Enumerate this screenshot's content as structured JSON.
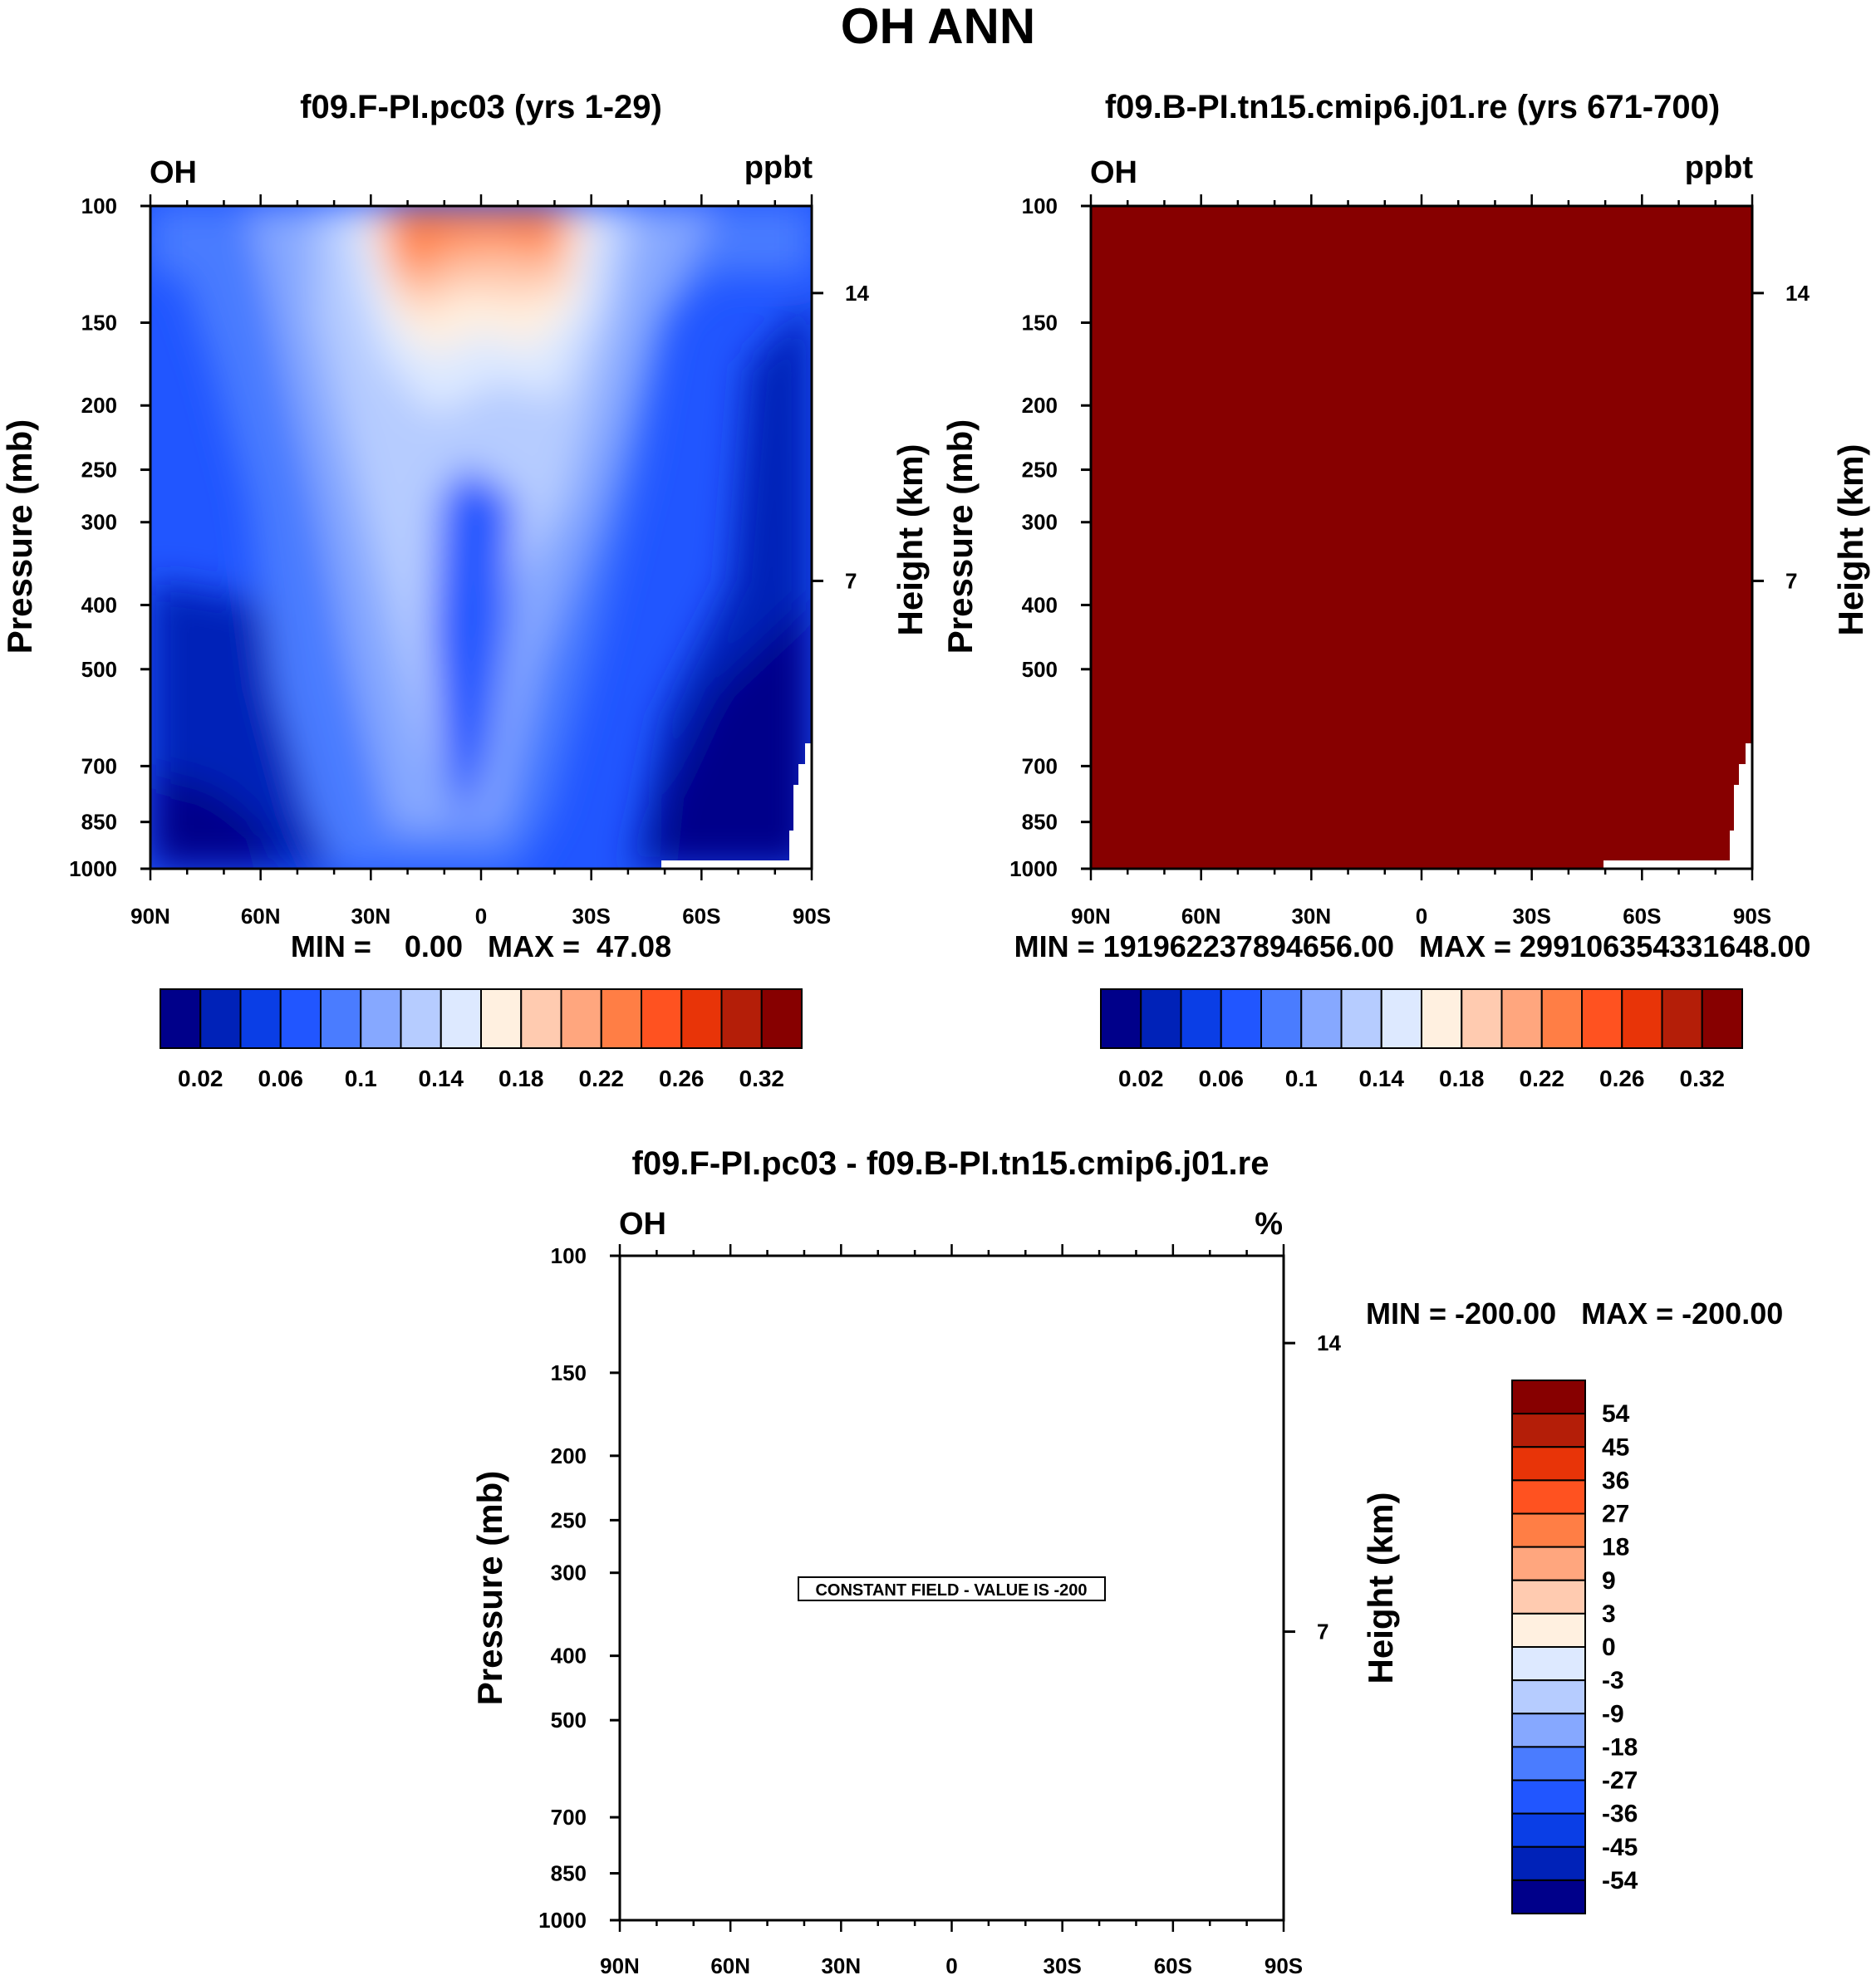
{
  "figure_title": "OH ANN",
  "chart_data": [
    {
      "type": "heatmap",
      "title": "f09.F-PI.pc03 (yrs 1-29)",
      "left_label": "OH",
      "right_label": "ppbt",
      "ylabel": "Pressure (mb)",
      "ylabel_right": "Height (km)",
      "x_ticks": [
        "90N",
        "60N",
        "30N",
        "0",
        "30S",
        "60S",
        "90S"
      ],
      "pressure_levels": [
        100,
        150,
        200,
        250,
        300,
        400,
        500,
        700,
        850,
        1000
      ],
      "height_ticks": [
        "14",
        "7"
      ],
      "min_max": "MIN =    0.00   MAX =  47.08",
      "colorbar_labels": [
        "0.02",
        "0.06",
        "0.1",
        "0.14",
        "0.18",
        "0.22",
        "0.26",
        "0.32"
      ],
      "field": "lat-pressure contours: warm (orange) core in upper tropics, blue elsewhere, darkest near surface poles"
    },
    {
      "type": "heatmap",
      "title": "f09.B-PI.tn15.cmip6.j01.re (yrs 671-700)",
      "left_label": "OH",
      "right_label": "ppbt",
      "ylabel": "Pressure (mb)",
      "ylabel_right": "Height (km)",
      "x_ticks": [
        "90N",
        "60N",
        "30N",
        "0",
        "30S",
        "60S",
        "90S"
      ],
      "pressure_levels": [
        100,
        150,
        200,
        250,
        300,
        400,
        500,
        700,
        850,
        1000
      ],
      "height_ticks": [
        "14",
        "7"
      ],
      "min_max": "MIN = 19196223789 4656.00   MAX = 29910635433 1648.00",
      "min_max_text": "MIN = 191962237894656.00   MAX = 299106354331648.00",
      "colorbar_labels": [
        "0.02",
        "0.06",
        "0.1",
        "0.14",
        "0.18",
        "0.22",
        "0.26",
        "0.32"
      ],
      "field": "uniform dark red"
    },
    {
      "type": "heatmap",
      "title": "f09.F-PI.pc03 - f09.B-PI.tn15.cmip6.j01.re",
      "left_label": "OH",
      "right_label": "%",
      "ylabel": "Pressure (mb)",
      "ylabel_right": "Height (km)",
      "x_ticks": [
        "90N",
        "60N",
        "30N",
        "0",
        "30S",
        "60S",
        "90S"
      ],
      "pressure_levels": [
        100,
        150,
        200,
        250,
        300,
        400,
        500,
        700,
        850,
        1000
      ],
      "height_ticks": [
        "14",
        "7"
      ],
      "min_max": "MIN = -200.00   MAX = -200.00",
      "annotation": "CONSTANT FIELD - VALUE IS -200",
      "colorbar_labels": [
        "54",
        "45",
        "36",
        "27",
        "18",
        "9",
        "3",
        "0",
        "-3",
        "-9",
        "-18",
        "-27",
        "-36",
        "-45",
        "-54"
      ]
    }
  ],
  "colors": {
    "scale": [
      "#00008a",
      "#0022b8",
      "#0a3ee6",
      "#2156ff",
      "#4a7cff",
      "#86a8ff",
      "#b6ccff",
      "#dde9ff",
      "#fff0e0",
      "#ffcbb0",
      "#ffa67e",
      "#ff7e45",
      "#ff5220",
      "#e83408",
      "#b41e08",
      "#870000"
    ],
    "frame": "#000000"
  }
}
